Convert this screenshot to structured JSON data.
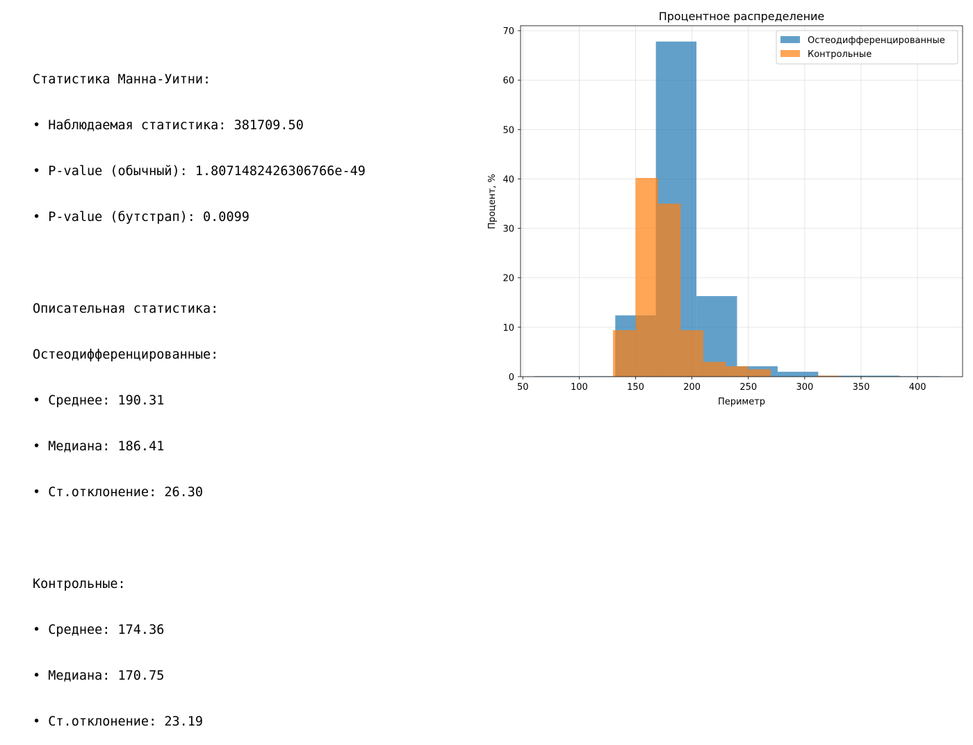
{
  "stats": {
    "mw_header": "Статистика Манна-Уитни:",
    "mw_observed": "• Наблюдаемая статистика: 381709.50",
    "mw_p_normal": "• P-value (обычный): 1.8071482426306766e-49",
    "mw_p_bootstrap": "• P-value (бутстрап): 0.0099",
    "desc_header": "Описательная статистика:",
    "osteo_header": "Остеодифференцированные:",
    "osteo_mean": "• Среднее: 190.31",
    "osteo_median": "• Медиана: 186.41",
    "osteo_std": "• Ст.отклонение: 26.30",
    "control_header": "Контрольные:",
    "control_mean": "• Среднее: 174.36",
    "control_median": "• Медиана: 170.75",
    "control_std": "• Ст.отклонение: 23.19"
  },
  "chart_data": {
    "type": "bar",
    "title": "Процентное распределение",
    "xlabel": "Периметр",
    "ylabel": "Процент, %",
    "xlim": [
      48,
      440
    ],
    "ylim": [
      0,
      71
    ],
    "xticks": [
      50,
      100,
      150,
      200,
      250,
      300,
      350,
      400
    ],
    "yticks": [
      0,
      10,
      20,
      30,
      40,
      50,
      60,
      70
    ],
    "grid": true,
    "legend_position": "top-right",
    "series": [
      {
        "name": "Остеодифференцированные",
        "color": "#1f77b4",
        "bins": [
          {
            "x0": 60.0,
            "x1": 96.0,
            "value": 0.1
          },
          {
            "x0": 96.0,
            "x1": 132.0,
            "value": 0.1
          },
          {
            "x0": 132.0,
            "x1": 168.0,
            "value": 12.4
          },
          {
            "x0": 168.0,
            "x1": 204.0,
            "value": 67.8
          },
          {
            "x0": 204.0,
            "x1": 240.0,
            "value": 16.3
          },
          {
            "x0": 240.0,
            "x1": 276.0,
            "value": 2.1
          },
          {
            "x0": 276.0,
            "x1": 312.0,
            "value": 1.0
          },
          {
            "x0": 312.0,
            "x1": 348.0,
            "value": 0.2
          },
          {
            "x0": 348.0,
            "x1": 384.0,
            "value": 0.2
          },
          {
            "x0": 384.0,
            "x1": 420.0,
            "value": 0.1
          }
        ]
      },
      {
        "name": "Контрольные",
        "color": "#ff7f0e",
        "bins": [
          {
            "x0": 130.0,
            "x1": 150.0,
            "value": 9.4
          },
          {
            "x0": 150.0,
            "x1": 170.0,
            "value": 40.2
          },
          {
            "x0": 170.0,
            "x1": 190.0,
            "value": 35.0
          },
          {
            "x0": 190.0,
            "x1": 210.0,
            "value": 9.4
          },
          {
            "x0": 210.0,
            "x1": 230.0,
            "value": 3.0
          },
          {
            "x0": 230.0,
            "x1": 250.0,
            "value": 2.1
          },
          {
            "x0": 250.0,
            "x1": 270.0,
            "value": 1.5
          },
          {
            "x0": 270.0,
            "x1": 290.0,
            "value": 0.0
          },
          {
            "x0": 290.0,
            "x1": 310.0,
            "value": 0.0
          },
          {
            "x0": 310.0,
            "x1": 330.0,
            "value": 0.2
          }
        ]
      }
    ]
  }
}
